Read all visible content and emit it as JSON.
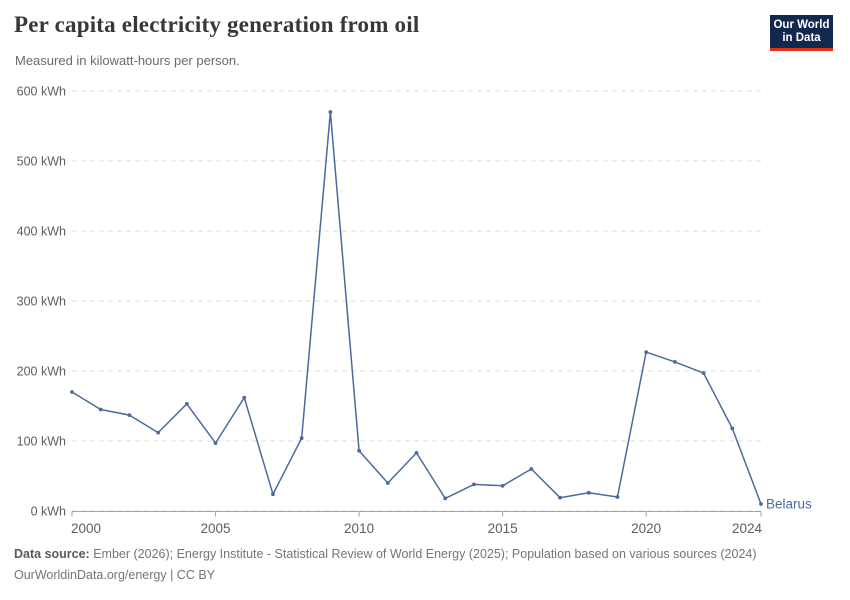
{
  "header": {
    "title": "Per capita electricity generation from oil",
    "subtitle": "Measured in kilowatt-hours per person.",
    "logo": {
      "line1": "Our World",
      "line2": "in Data"
    }
  },
  "chart_data": {
    "type": "line",
    "title": "Per capita electricity generation from oil",
    "ylabel": "",
    "xlabel": "",
    "y_unit": "kWh",
    "xlim": [
      2000,
      2024
    ],
    "ylim": [
      0,
      600
    ],
    "y_ticks": [
      0,
      100,
      200,
      300,
      400,
      500,
      600
    ],
    "x_ticks": [
      2000,
      2005,
      2010,
      2015,
      2020,
      2024
    ],
    "grid": "horizontal-dashed",
    "legend_position": "end-of-line-label",
    "x": [
      2000,
      2001,
      2002,
      2003,
      2004,
      2005,
      2006,
      2007,
      2008,
      2009,
      2010,
      2011,
      2012,
      2013,
      2014,
      2015,
      2016,
      2017,
      2018,
      2019,
      2020,
      2021,
      2022,
      2023,
      2024
    ],
    "series": [
      {
        "name": "Belarus",
        "color": "#4c6a9c",
        "values": [
          170,
          145,
          137,
          112,
          153,
          97,
          162,
          24,
          104,
          570,
          86,
          40,
          83,
          18,
          38,
          36,
          60,
          19,
          26,
          20,
          227,
          213,
          197,
          118,
          10
        ]
      }
    ]
  },
  "footer": {
    "source_label": "Data source:",
    "source_text": "Ember (2026); Energy Institute - Statistical Review of World Energy (2025); Population based on various sources (2024)",
    "link_line": "OurWorldinData.org/energy | CC BY"
  },
  "colors": {
    "series_blue": "#4c6a9c",
    "title_text": "#383838",
    "muted_text": "#6b6b6b",
    "gridline": "#dcdcdc",
    "axis": "#a3a3a3",
    "logo_navy": "#12294d",
    "logo_red": "#e0301a"
  }
}
